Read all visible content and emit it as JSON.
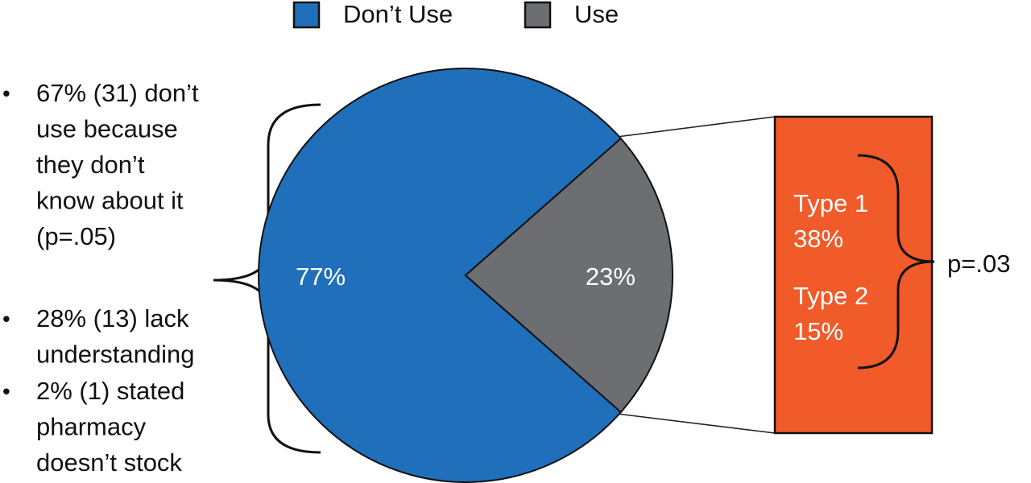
{
  "chart_data": {
    "type": "pie",
    "categories": [
      "Don’t Use",
      "Use"
    ],
    "values": [
      77,
      23
    ],
    "value_labels": [
      "77%",
      "23%"
    ],
    "colors": [
      "#1f6fba",
      "#6d6e71"
    ],
    "legend": "top",
    "annotations": {
      "bullets": [
        [
          "67% (31) don’t",
          "use because",
          "they don’t",
          "know about it",
          "(p=.05)"
        ],
        [
          "28% (13) lack",
          "understanding"
        ],
        [
          "2% (1) stated",
          "pharmacy",
          "doesn’t stock"
        ]
      ],
      "bullet_symbol": "•",
      "breakdown": [
        "Type 1",
        "38%",
        "Type 2",
        "15%"
      ],
      "breakdown_p": "p=.03"
    }
  }
}
